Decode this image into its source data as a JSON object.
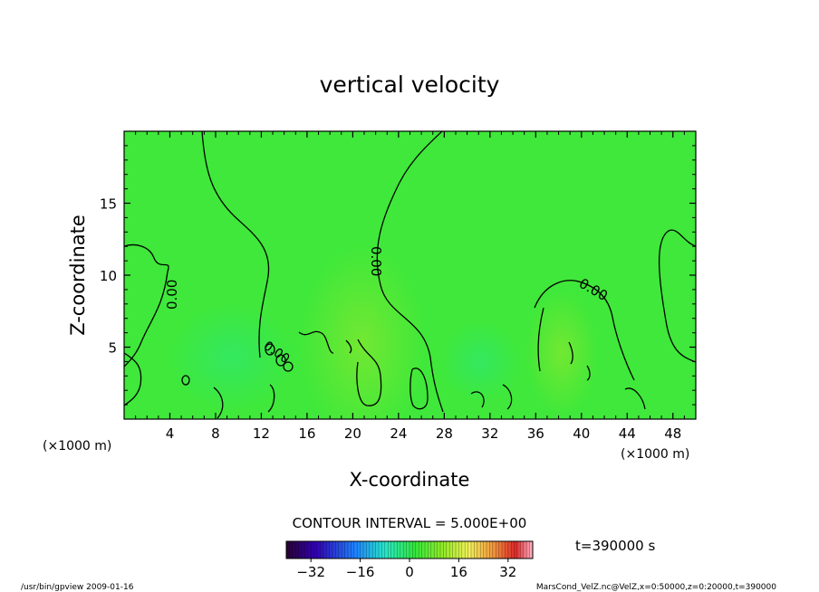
{
  "chart_data": {
    "type": "heatmap",
    "title": "vertical velocity",
    "xlabel": "X-coordinate",
    "ylabel": "Z-coordinate",
    "x_unit": "(×1000 m)",
    "x_unit_right": "(×1000 m)",
    "xlim": [
      0,
      50
    ],
    "ylim": [
      0,
      20
    ],
    "x_ticks": [
      4,
      8,
      12,
      16,
      20,
      24,
      28,
      32,
      36,
      40,
      44,
      48
    ],
    "y_ticks": [
      5,
      10,
      15
    ],
    "contour_interval_label": "CONTOUR INTERVAL = 5.000E+00",
    "contour_labels": [
      "0.00",
      "0.00",
      "0.00",
      "0.00"
    ],
    "time_label": "t=390000 s",
    "colorbar": {
      "range": [
        -40,
        40
      ],
      "ticks": [
        -32,
        -16,
        0,
        16,
        32
      ]
    },
    "field_color": "#3fe83a"
  },
  "footer": {
    "left": "/usr/bin/gpview  2009-01-16",
    "right": "MarsCond_VelZ.nc@VelZ,x=0:50000,z=0:20000,t=390000"
  }
}
